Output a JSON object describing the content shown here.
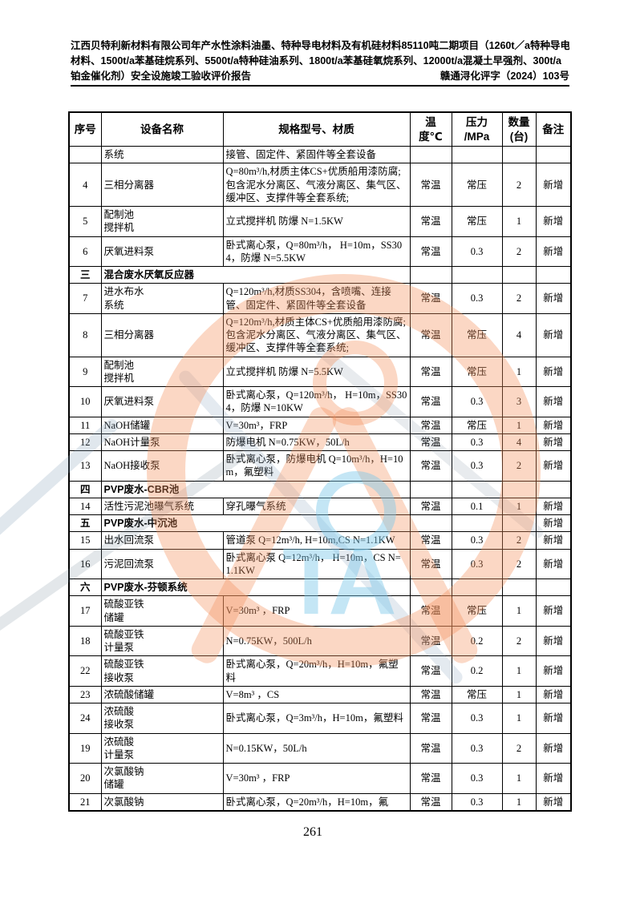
{
  "page": {
    "header": {
      "line1": "江西贝特利新材料有限公司年产水性涂料油墨、特种导电材料及有机硅材料85110吨二期项目（1260t／a特种导电",
      "line2": "材料、1500t/a苯基硅烷系列、5500t/a特种硅油系列、1800t/a苯基硅氧烷系列、12000t/a混凝土早强剂、300t/a",
      "line3": "铂金催化剂）安全设施竣工验收评价报告",
      "doc_number": "赣通浔化评字（2024）103号"
    },
    "footer": {
      "page_number": "261"
    }
  },
  "table": {
    "columns": [
      {
        "key": "no",
        "label": "序号"
      },
      {
        "key": "name",
        "label": "设备名称"
      },
      {
        "key": "spec",
        "label": "规格型号、材质"
      },
      {
        "key": "temp",
        "label": "温\n度℃"
      },
      {
        "key": "pressure",
        "label": "压力\n/MPa"
      },
      {
        "key": "qty",
        "label": "数量\n(台)"
      },
      {
        "key": "remark",
        "label": "备注"
      }
    ],
    "rows": [
      {
        "type": "continuation",
        "no": "",
        "name": "系统",
        "spec": "接管、固定件、紧固件等全套设备",
        "temp": "",
        "pressure": "",
        "qty": "",
        "remark": ""
      },
      {
        "type": "item",
        "no": "4",
        "name": "三相分离器",
        "spec": "Q=80m³/h,材质主体CS+优质船用漆防腐;包含泥水分离区、气液分离区、集气区、缓冲区、支撑件等全套系统;",
        "temp": "常温",
        "pressure": "常压",
        "qty": "2",
        "remark": "新增"
      },
      {
        "type": "item",
        "no": "5",
        "name": "配制池\n搅拌机",
        "spec": "立式搅拌机 防爆 N=1.5KW",
        "temp": "常温",
        "pressure": "常压",
        "qty": "1",
        "remark": "新增"
      },
      {
        "type": "item",
        "no": "6",
        "name": "厌氧进料泵",
        "spec": "卧式离心泵，Q=80m³/h， H=10m，SS304，防爆 N=5.5KW",
        "temp": "常温",
        "pressure": "0.3",
        "qty": "2",
        "remark": "新增"
      },
      {
        "type": "section",
        "no": "三",
        "name": "混合废水厌氧反应器",
        "spec": "",
        "temp": "",
        "pressure": "",
        "qty": "",
        "remark": ""
      },
      {
        "type": "item",
        "no": "7",
        "name": "进水布水\n系统",
        "spec": "Q=120m³/h,材质SS304，含喷嘴、连接管、固定件、紧固件等全套设备",
        "temp": "常温",
        "pressure": "0.3",
        "qty": "2",
        "remark": "新增"
      },
      {
        "type": "item",
        "no": "8",
        "name": "三相分离器",
        "spec": "Q=120m³/h,材质主体CS+优质船用漆防腐;包含泥水分离区、气液分离区、集气区、缓冲区、支撑件等全套系统;",
        "temp": "常温",
        "pressure": "常压",
        "qty": "4",
        "remark": "新增"
      },
      {
        "type": "item",
        "no": "9",
        "name": "配制池\n搅拌机",
        "spec": "立式搅拌机 防爆 N=5.5KW",
        "temp": "常温",
        "pressure": "常压",
        "qty": "1",
        "remark": "新增"
      },
      {
        "type": "item",
        "no": "10",
        "name": "厌氧进料泵",
        "spec": "卧式离心泵，Q=120m³/h， H=10m，SS304，防爆 N=10KW",
        "temp": "常温",
        "pressure": "0.3",
        "qty": "3",
        "remark": "新增"
      },
      {
        "type": "item",
        "no": "11",
        "name": "NaOH储罐",
        "spec": "V=30m³，FRP",
        "temp": "常温",
        "pressure": "常压",
        "qty": "1",
        "remark": "新增"
      },
      {
        "type": "item",
        "no": "12",
        "name": "NaOH计量泵",
        "spec": "防爆电机 N=0.75KW，50L/h",
        "temp": "常温",
        "pressure": "0.3",
        "qty": "4",
        "remark": "新增"
      },
      {
        "type": "item",
        "no": "13",
        "name": "NaOH接收泵",
        "spec": "卧式离心泵，防爆电机 Q=10m³/h，H=10m，氟塑料",
        "temp": "常温",
        "pressure": "0.3",
        "qty": "2",
        "remark": "新增"
      },
      {
        "type": "section",
        "no": "四",
        "name": "PVP废水-CBR池",
        "spec": "",
        "temp": "",
        "pressure": "",
        "qty": "",
        "remark": ""
      },
      {
        "type": "item",
        "no": "14",
        "name": "活性污泥池曝气系统",
        "spec": "穿孔曝气系统",
        "temp": "常温",
        "pressure": "0.1",
        "qty": "1",
        "remark": "新增"
      },
      {
        "type": "section",
        "no": "五",
        "name": "PVP废水-中沉池",
        "spec": "",
        "temp": "",
        "pressure": "",
        "qty": "",
        "remark": "新增"
      },
      {
        "type": "item",
        "no": "15",
        "name": "出水回流泵",
        "spec": "管道泵 Q=12m³/h, H=10m,CS N=1.1KW",
        "temp": "常温",
        "pressure": "0.3",
        "qty": "2",
        "remark": "新增"
      },
      {
        "type": "item",
        "no": "16",
        "name": "污泥回流泵",
        "spec": "卧式离心泵 Q=12m³/h， H=10m，CS N=1.1KW",
        "temp": "常温",
        "pressure": "0.3",
        "qty": "2",
        "remark": "新增"
      },
      {
        "type": "section",
        "no": "六",
        "name": "PVP废水-芬顿系统",
        "spec": "",
        "temp": "",
        "pressure": "",
        "qty": "",
        "remark": ""
      },
      {
        "type": "item",
        "no": "17",
        "name": "硫酸亚铁\n储罐",
        "spec": " V=30m³ ，FRP",
        "temp": "常温",
        "pressure": "常压",
        "qty": "1",
        "remark": "新增"
      },
      {
        "type": "item",
        "no": "18",
        "name": "硫酸亚铁\n计量泵",
        "spec": "N=0.75KW，500L/h",
        "temp": "常温",
        "pressure": "0.2",
        "qty": "2",
        "remark": "新增"
      },
      {
        "type": "item",
        "no": "22",
        "name": "硫酸亚铁\n接收泵",
        "spec": "卧式离心泵，Q=20m³/h，H=10m，氟塑料",
        "temp": "常温",
        "pressure": "0.2",
        "qty": "1",
        "remark": "新增"
      },
      {
        "type": "item",
        "no": "23",
        "name": "浓硫酸储罐",
        "spec": " V=8m³ ，CS",
        "temp": "常温",
        "pressure": "常压",
        "qty": "1",
        "remark": "新增"
      },
      {
        "type": "item",
        "no": "24",
        "name": "浓硫酸\n接收泵",
        "spec": "卧式离心泵，Q=3m³/h，H=10m，氟塑料",
        "temp": "常温",
        "pressure": "0.3",
        "qty": "1",
        "remark": "新增"
      },
      {
        "type": "item",
        "no": "19",
        "name": "浓硫酸\n计量泵",
        "spec": "N=0.15KW，50L/h",
        "temp": "常温",
        "pressure": "0.3",
        "qty": "2",
        "remark": "新增"
      },
      {
        "type": "item",
        "no": "20",
        "name": "次氯酸钠\n储罐",
        "spec": " V=30m³ ，FRP",
        "temp": "常温",
        "pressure": "0.3",
        "qty": "1",
        "remark": "新增"
      },
      {
        "type": "item",
        "no": "21",
        "name": "次氯酸钠",
        "spec": "卧式离心泵，Q=20m³/h，H=10m，氟",
        "temp": "常温",
        "pressure": "0.3",
        "qty": "1",
        "remark": "新增"
      }
    ]
  },
  "watermark": {
    "letters": "TA",
    "ring_color": "#F3905C",
    "letters_color": "#7DC8E8"
  },
  "colors": {
    "text": "#000000",
    "border": "#000000",
    "page_background": "#FFFFFF"
  }
}
